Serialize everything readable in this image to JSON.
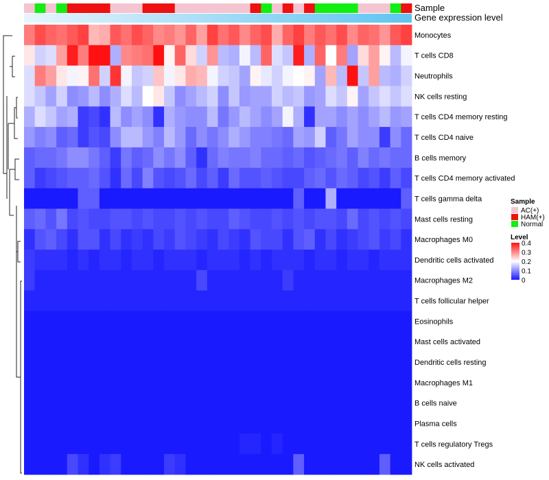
{
  "chart_data": {
    "type": "heatmap",
    "title": "",
    "annotation_tracks": [
      "Sample",
      "Gene expression level"
    ],
    "sample_groups": [
      "AC(+)",
      "HAM(+)",
      "Normal"
    ],
    "group_colors": {
      "AC(+)": "#f4c5d0",
      "HAM(+)": "#ee1111",
      "Normal": "#11ee11"
    },
    "legend": {
      "sample_title": "Sample",
      "level_title": "Level",
      "level_ticks": [
        {
          "value": 0.4,
          "label": "0.4"
        },
        {
          "value": 0.3,
          "label": "0.3"
        },
        {
          "value": 0.2,
          "label": "0.2"
        },
        {
          "value": 0.1,
          "label": "0.1"
        },
        {
          "value": 0,
          "label": "0"
        }
      ],
      "level_range": [
        0,
        0.4
      ],
      "low_color": "#1a1aff",
      "mid_color": "#ffffff",
      "high_color": "#ff1111",
      "mid_value": 0.2
    },
    "samples": [
      "AC(+)",
      "Normal",
      "AC(+)",
      "Normal",
      "HAM(+)",
      "HAM(+)",
      "HAM(+)",
      "HAM(+)",
      "AC(+)",
      "AC(+)",
      "AC(+)",
      "HAM(+)",
      "HAM(+)",
      "HAM(+)",
      "AC(+)",
      "AC(+)",
      "AC(+)",
      "AC(+)",
      "AC(+)",
      "AC(+)",
      "AC(+)",
      "HAM(+)",
      "Normal",
      "AC(+)",
      "HAM(+)",
      "AC(+)",
      "HAM(+)",
      "Normal",
      "Normal",
      "Normal",
      "Normal",
      "AC(+)",
      "AC(+)",
      "AC(+)",
      "Normal",
      "HAM(+)"
    ],
    "rows": [
      "Monocytes",
      "T cells CD8",
      "Neutrophils",
      "NK cells resting",
      "T cells CD4 memory resting",
      "T cells CD4 naive",
      "B cells memory",
      "T cells CD4 memory activated",
      "T cells gamma delta",
      "Mast cells resting",
      "Macrophages M0",
      "Dendritic cells activated",
      "Macrophages M2",
      "T cells follicular helper",
      "Eosinophils",
      "Mast cells activated",
      "Dendritic cells resting",
      "Macrophages M1",
      "B cells naive",
      "Plasma cells",
      "T cells regulatory  Tregs",
      "NK cells activated"
    ],
    "values": [
      [
        0.31,
        0.35,
        0.33,
        0.32,
        0.34,
        0.36,
        0.26,
        0.27,
        0.34,
        0.32,
        0.35,
        0.33,
        0.3,
        0.31,
        0.29,
        0.33,
        0.28,
        0.36,
        0.32,
        0.34,
        0.3,
        0.33,
        0.35,
        0.27,
        0.33,
        0.36,
        0.31,
        0.34,
        0.32,
        0.35,
        0.3,
        0.33,
        0.32,
        0.29,
        0.34,
        0.36
      ],
      [
        0.22,
        0.16,
        0.17,
        0.28,
        0.39,
        0.31,
        0.4,
        0.4,
        0.13,
        0.3,
        0.31,
        0.32,
        0.4,
        0.21,
        0.33,
        0.23,
        0.16,
        0.29,
        0.14,
        0.13,
        0.19,
        0.14,
        0.33,
        0.17,
        0.15,
        0.39,
        0.13,
        0.33,
        0.2,
        0.31,
        0.12,
        0.23,
        0.28,
        0.21,
        0.14,
        0.19
      ],
      [
        0.17,
        0.31,
        0.28,
        0.22,
        0.19,
        0.21,
        0.32,
        0.16,
        0.37,
        0.19,
        0.15,
        0.16,
        0.25,
        0.19,
        0.22,
        0.27,
        0.26,
        0.19,
        0.16,
        0.15,
        0.12,
        0.21,
        0.18,
        0.16,
        0.19,
        0.2,
        0.21,
        0.12,
        0.26,
        0.14,
        0.4,
        0.15,
        0.28,
        0.14,
        0.13,
        0.16
      ],
      [
        0.17,
        0.15,
        0.12,
        0.16,
        0.1,
        0.11,
        0.14,
        0.1,
        0.13,
        0.17,
        0.14,
        0.2,
        0.22,
        0.15,
        0.1,
        0.12,
        0.14,
        0.16,
        0.1,
        0.15,
        0.11,
        0.12,
        0.12,
        0.16,
        0.14,
        0.15,
        0.11,
        0.12,
        0.17,
        0.15,
        0.21,
        0.12,
        0.15,
        0.17,
        0.15,
        0.17
      ],
      [
        0.13,
        0.17,
        0.15,
        0.12,
        0.13,
        0.03,
        0.04,
        0.02,
        0.14,
        0.1,
        0.12,
        0.1,
        0.02,
        0.13,
        0.11,
        0.1,
        0.1,
        0.14,
        0.08,
        0.11,
        0.14,
        0.12,
        0.1,
        0.12,
        0.19,
        0.13,
        0.02,
        0.12,
        0.12,
        0.1,
        0.12,
        0.1,
        0.12,
        0.14,
        0.11,
        0.12
      ],
      [
        0.11,
        0.09,
        0.1,
        0.06,
        0.07,
        0.03,
        0.05,
        0.04,
        0.1,
        0.14,
        0.14,
        0.11,
        0.09,
        0.14,
        0.11,
        0.07,
        0.1,
        0.08,
        0.1,
        0.13,
        0.11,
        0.09,
        0.09,
        0.08,
        0.07,
        0.12,
        0.11,
        0.16,
        0.06,
        0.08,
        0.12,
        0.1,
        0.1,
        0.03,
        0.1,
        0.07
      ],
      [
        0.06,
        0.07,
        0.07,
        0.08,
        0.1,
        0.1,
        0.08,
        0.06,
        0.03,
        0.08,
        0.06,
        0.07,
        0.1,
        0.08,
        0.1,
        0.06,
        0.02,
        0.07,
        0.09,
        0.08,
        0.08,
        0.09,
        0.07,
        0.07,
        0.06,
        0.07,
        0.05,
        0.06,
        0.07,
        0.08,
        0.06,
        0.09,
        0.07,
        0.08,
        0.07,
        0.07
      ],
      [
        0.06,
        0.03,
        0.04,
        0.05,
        0.06,
        0.06,
        0.07,
        0.05,
        0.02,
        0.07,
        0.04,
        0.09,
        0.05,
        0.04,
        0.05,
        0.07,
        0.04,
        0.06,
        0.03,
        0.07,
        0.05,
        0.05,
        0.06,
        0.05,
        0.04,
        0.04,
        0.06,
        0.07,
        0.05,
        0.07,
        0.06,
        0.04,
        0.05,
        0.03,
        0.06,
        0.04
      ],
      [
        0.0,
        0.0,
        0.0,
        0.0,
        0.0,
        0.06,
        0.06,
        0.0,
        0.0,
        0.0,
        0.0,
        0.0,
        0.0,
        0.0,
        0.0,
        0.0,
        0.0,
        0.0,
        0.0,
        0.0,
        0.0,
        0.0,
        0.0,
        0.0,
        0.0,
        0.06,
        0.0,
        0.0,
        0.13,
        0.0,
        0.0,
        0.0,
        0.0,
        0.0,
        0.0,
        0.06
      ],
      [
        0.06,
        0.07,
        0.05,
        0.08,
        0.04,
        0.05,
        0.04,
        0.04,
        0.05,
        0.05,
        0.04,
        0.05,
        0.04,
        0.04,
        0.05,
        0.04,
        0.05,
        0.04,
        0.04,
        0.06,
        0.05,
        0.04,
        0.04,
        0.05,
        0.04,
        0.05,
        0.04,
        0.05,
        0.05,
        0.04,
        0.07,
        0.04,
        0.05,
        0.04,
        0.05,
        0.04
      ],
      [
        0.02,
        0.05,
        0.06,
        0.04,
        0.02,
        0.05,
        0.05,
        0.02,
        0.04,
        0.02,
        0.03,
        0.02,
        0.04,
        0.03,
        0.05,
        0.04,
        0.03,
        0.02,
        0.04,
        0.03,
        0.02,
        0.05,
        0.04,
        0.04,
        0.02,
        0.05,
        0.06,
        0.02,
        0.04,
        0.02,
        0.03,
        0.04,
        0.05,
        0.03,
        0.04,
        0.02
      ],
      [
        0.03,
        0.02,
        0.02,
        0.02,
        0.01,
        0.02,
        0.01,
        0.02,
        0.02,
        0.01,
        0.02,
        0.02,
        0.01,
        0.02,
        0.02,
        0.02,
        0.01,
        0.02,
        0.02,
        0.02,
        0.01,
        0.02,
        0.01,
        0.02,
        0.02,
        0.02,
        0.01,
        0.02,
        0.02,
        0.01,
        0.02,
        0.02,
        0.01,
        0.02,
        0.02,
        0.02
      ],
      [
        0.03,
        0.01,
        0.01,
        0.01,
        0.01,
        0.01,
        0.01,
        0.01,
        0.01,
        0.01,
        0.01,
        0.01,
        0.01,
        0.01,
        0.01,
        0.01,
        0.04,
        0.01,
        0.01,
        0.01,
        0.01,
        0.01,
        0.01,
        0.01,
        0.03,
        0.01,
        0.01,
        0.01,
        0.01,
        0.01,
        0.01,
        0.01,
        0.01,
        0.01,
        0.01,
        0.01
      ],
      [
        0.01,
        0.01,
        0.01,
        0.01,
        0.01,
        0.01,
        0.01,
        0.01,
        0.01,
        0.01,
        0.01,
        0.01,
        0.01,
        0.01,
        0.01,
        0.01,
        0.01,
        0.01,
        0.01,
        0.01,
        0.01,
        0.01,
        0.01,
        0.01,
        0.01,
        0.01,
        0.01,
        0.01,
        0.01,
        0.01,
        0.01,
        0.01,
        0.01,
        0.01,
        0.01,
        0.01
      ],
      [
        0.0,
        0.0,
        0.0,
        0.0,
        0.0,
        0.0,
        0.0,
        0.0,
        0.0,
        0.0,
        0.0,
        0.0,
        0.0,
        0.0,
        0.0,
        0.0,
        0.0,
        0.0,
        0.0,
        0.0,
        0.0,
        0.0,
        0.0,
        0.0,
        0.0,
        0.0,
        0.0,
        0.0,
        0.0,
        0.0,
        0.0,
        0.0,
        0.0,
        0.0,
        0.0,
        0.0
      ],
      [
        0.0,
        0.0,
        0.0,
        0.0,
        0.0,
        0.0,
        0.0,
        0.0,
        0.0,
        0.0,
        0.0,
        0.0,
        0.0,
        0.0,
        0.0,
        0.0,
        0.0,
        0.0,
        0.0,
        0.0,
        0.0,
        0.0,
        0.0,
        0.0,
        0.0,
        0.0,
        0.0,
        0.0,
        0.0,
        0.0,
        0.0,
        0.0,
        0.0,
        0.0,
        0.0,
        0.0
      ],
      [
        0.0,
        0.0,
        0.0,
        0.0,
        0.0,
        0.0,
        0.0,
        0.0,
        0.0,
        0.0,
        0.0,
        0.0,
        0.0,
        0.0,
        0.0,
        0.0,
        0.0,
        0.0,
        0.0,
        0.0,
        0.0,
        0.0,
        0.0,
        0.0,
        0.0,
        0.0,
        0.0,
        0.0,
        0.0,
        0.0,
        0.0,
        0.0,
        0.0,
        0.0,
        0.0,
        0.0
      ],
      [
        0.0,
        0.0,
        0.0,
        0.0,
        0.0,
        0.0,
        0.0,
        0.0,
        0.0,
        0.0,
        0.0,
        0.0,
        0.0,
        0.0,
        0.0,
        0.0,
        0.0,
        0.0,
        0.0,
        0.0,
        0.0,
        0.0,
        0.0,
        0.0,
        0.0,
        0.0,
        0.0,
        0.0,
        0.0,
        0.0,
        0.0,
        0.0,
        0.0,
        0.0,
        0.0,
        0.0
      ],
      [
        0.0,
        0.0,
        0.0,
        0.0,
        0.0,
        0.0,
        0.0,
        0.0,
        0.0,
        0.0,
        0.0,
        0.0,
        0.0,
        0.0,
        0.0,
        0.0,
        0.0,
        0.0,
        0.0,
        0.0,
        0.0,
        0.0,
        0.0,
        0.0,
        0.0,
        0.0,
        0.0,
        0.0,
        0.0,
        0.0,
        0.0,
        0.0,
        0.0,
        0.0,
        0.0,
        0.0
      ],
      [
        0.0,
        0.0,
        0.0,
        0.0,
        0.0,
        0.0,
        0.0,
        0.0,
        0.0,
        0.0,
        0.0,
        0.0,
        0.0,
        0.0,
        0.0,
        0.0,
        0.0,
        0.0,
        0.0,
        0.0,
        0.0,
        0.0,
        0.0,
        0.0,
        0.0,
        0.0,
        0.0,
        0.0,
        0.0,
        0.0,
        0.0,
        0.0,
        0.0,
        0.0,
        0.0,
        0.0
      ],
      [
        0.0,
        0.0,
        0.0,
        0.0,
        0.0,
        0.0,
        0.0,
        0.0,
        0.0,
        0.0,
        0.0,
        0.0,
        0.0,
        0.0,
        0.0,
        0.0,
        0.0,
        0.0,
        0.0,
        0.0,
        0.01,
        0.01,
        0.0,
        0.01,
        0.0,
        0.0,
        0.0,
        0.0,
        0.0,
        0.0,
        0.0,
        0.0,
        0.0,
        0.0,
        0.0,
        0.0
      ],
      [
        0.0,
        0.0,
        0.0,
        0.0,
        0.04,
        0.02,
        0.0,
        0.02,
        0.03,
        0.0,
        0.0,
        0.0,
        0.0,
        0.03,
        0.02,
        0.0,
        0.0,
        0.0,
        0.0,
        0.0,
        0.0,
        0.0,
        0.0,
        0.0,
        0.0,
        0.06,
        0.0,
        0.0,
        0.0,
        0.0,
        0.0,
        0.0,
        0.0,
        0.06,
        0.0,
        0.0
      ]
    ]
  }
}
